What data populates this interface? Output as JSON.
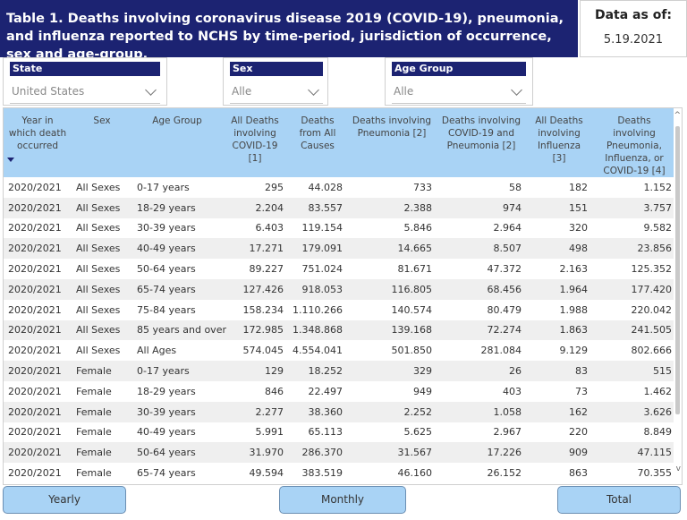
{
  "title": "Table 1. Deaths involving coronavirus disease 2019 (COVID-19), pneumonia, and influenza reported to NCHS by time-period, jurisdiction of occurrence, sex and age-group.",
  "data_as_of": {
    "label": "Data as of:",
    "value": "5.19.2021"
  },
  "filters": {
    "state": {
      "label": "State",
      "value": "United States"
    },
    "sex": {
      "label": "Sex",
      "value": "Alle"
    },
    "age_group": {
      "label": "Age Group",
      "value": "Alle"
    }
  },
  "columns": [
    "Year in which death occurred",
    "Sex",
    "Age Group",
    "All Deaths involving COVID-19 [1]",
    "Deaths from All Causes",
    "Deaths involving Pneumonia [2]",
    "Deaths involving COVID-19 and Pneumonia [2]",
    "All Deaths involving Influenza [3]",
    "Deaths involving Pneumonia, Influenza, or COVID-19 [4]"
  ],
  "rows": [
    [
      "2020/2021",
      "All Sexes",
      "0-17 years",
      "295",
      "44.028",
      "733",
      "58",
      "182",
      "1.152"
    ],
    [
      "2020/2021",
      "All Sexes",
      "18-29 years",
      "2.204",
      "83.557",
      "2.388",
      "974",
      "151",
      "3.757"
    ],
    [
      "2020/2021",
      "All Sexes",
      "30-39 years",
      "6.403",
      "119.154",
      "5.846",
      "2.964",
      "320",
      "9.582"
    ],
    [
      "2020/2021",
      "All Sexes",
      "40-49 years",
      "17.271",
      "179.091",
      "14.665",
      "8.507",
      "498",
      "23.856"
    ],
    [
      "2020/2021",
      "All Sexes",
      "50-64 years",
      "89.227",
      "751.024",
      "81.671",
      "47.372",
      "2.163",
      "125.352"
    ],
    [
      "2020/2021",
      "All Sexes",
      "65-74 years",
      "127.426",
      "918.053",
      "116.805",
      "68.456",
      "1.964",
      "177.420"
    ],
    [
      "2020/2021",
      "All Sexes",
      "75-84 years",
      "158.234",
      "1.110.266",
      "140.574",
      "80.479",
      "1.988",
      "220.042"
    ],
    [
      "2020/2021",
      "All Sexes",
      "85 years and over",
      "172.985",
      "1.348.868",
      "139.168",
      "72.274",
      "1.863",
      "241.505"
    ],
    [
      "2020/2021",
      "All Sexes",
      "All Ages",
      "574.045",
      "4.554.041",
      "501.850",
      "281.084",
      "9.129",
      "802.666"
    ],
    [
      "2020/2021",
      "Female",
      "0-17 years",
      "129",
      "18.252",
      "329",
      "26",
      "83",
      "515"
    ],
    [
      "2020/2021",
      "Female",
      "18-29 years",
      "846",
      "22.497",
      "949",
      "403",
      "73",
      "1.462"
    ],
    [
      "2020/2021",
      "Female",
      "30-39 years",
      "2.277",
      "38.360",
      "2.252",
      "1.058",
      "162",
      "3.626"
    ],
    [
      "2020/2021",
      "Female",
      "40-49 years",
      "5.991",
      "65.113",
      "5.625",
      "2.967",
      "220",
      "8.849"
    ],
    [
      "2020/2021",
      "Female",
      "50-64 years",
      "31.970",
      "286.370",
      "31.567",
      "17.226",
      "909",
      "47.115"
    ],
    [
      "2020/2021",
      "Female",
      "65-74 years",
      "49.594",
      "383.519",
      "46.160",
      "26.152",
      "863",
      "70.355"
    ]
  ],
  "buttons": {
    "yearly": "Yearly",
    "monthly": "Monthly",
    "total": "Total"
  },
  "colors": {
    "header_bg": "#1c2372",
    "table_header_bg": "#a9d3f5",
    "button_bg": "#a9d3f5"
  }
}
